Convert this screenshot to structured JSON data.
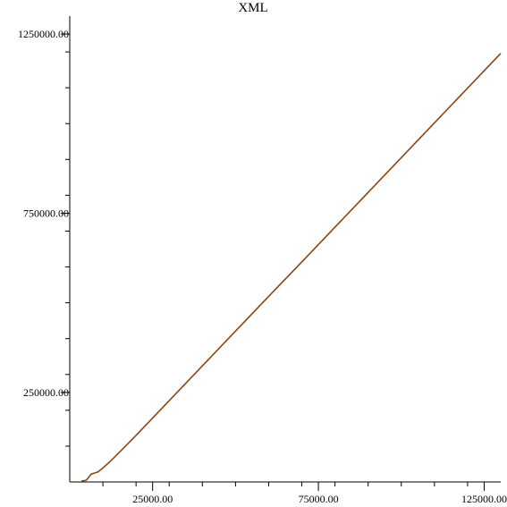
{
  "chart_data": {
    "type": "line",
    "title": "XML",
    "xlabel": "",
    "ylabel": "",
    "xlim": [
      0,
      130000
    ],
    "ylim": [
      0,
      1300000
    ],
    "grid": false,
    "x_ticks": [
      25000,
      75000,
      125000
    ],
    "x_tick_labels": [
      "25000.00",
      "75000.00",
      "125000.00"
    ],
    "x_minor_ticks": [
      10000,
      20000,
      30000,
      40000,
      50000,
      60000,
      70000,
      80000,
      90000,
      100000,
      110000,
      120000
    ],
    "y_ticks": [
      250000,
      750000,
      1250000
    ],
    "y_tick_labels": [
      "250000.00",
      "750000.00",
      "1250000.00"
    ],
    "y_minor_ticks": [
      100000,
      200000,
      300000,
      400000,
      500000,
      600000,
      700000,
      800000,
      900000,
      1000000,
      1100000,
      1200000
    ],
    "series": [
      {
        "color": "#8B4513",
        "x": [
          3500,
          5000,
          6500,
          7500,
          8500,
          10000,
          12500,
          15000,
          20000,
          30000,
          40000,
          50000,
          60000,
          70000,
          80000,
          90000,
          100000,
          110000,
          120000,
          130000
        ],
        "y": [
          2000,
          5000,
          22000,
          25000,
          28000,
          39000,
          60000,
          83000,
          130000,
          227000,
          324000,
          421000,
          518000,
          614000,
          711000,
          808000,
          905000,
          1002000,
          1099000,
          1196000
        ]
      }
    ]
  }
}
